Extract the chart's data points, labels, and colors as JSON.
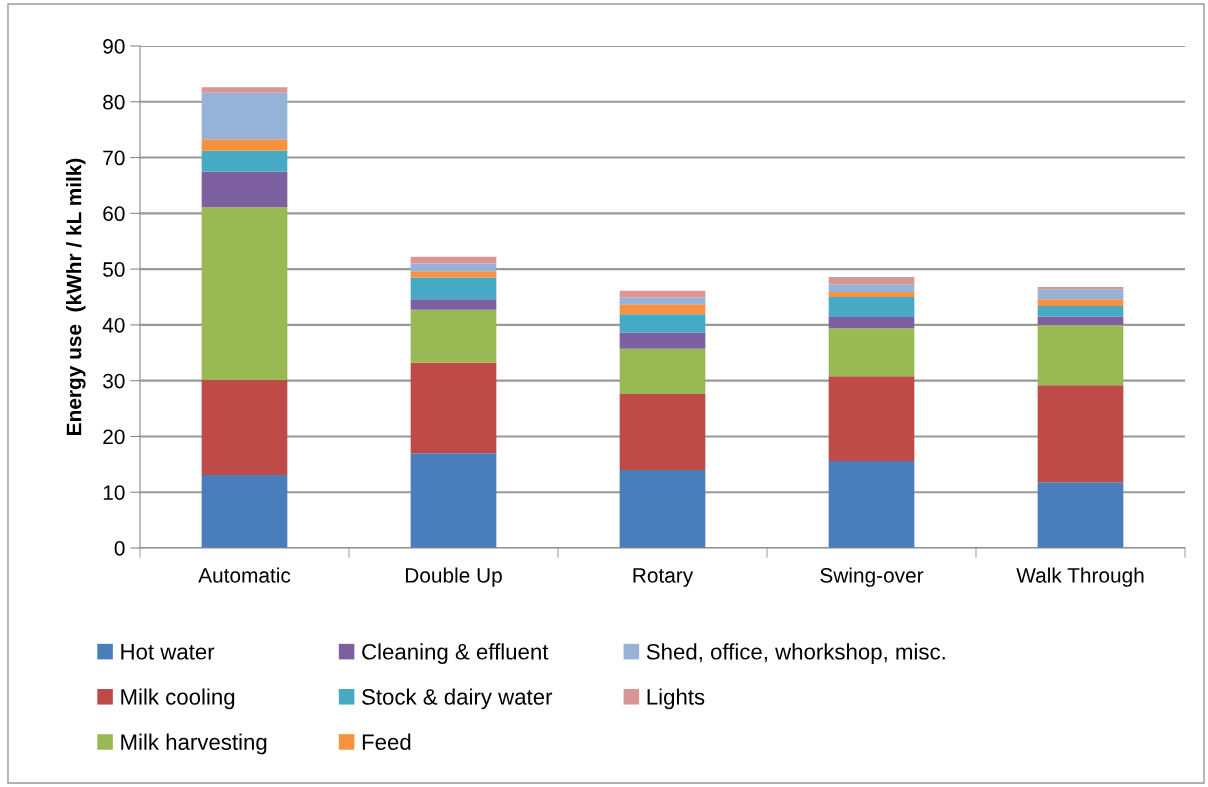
{
  "chart_data": {
    "type": "bar",
    "stacked": true,
    "ylabel": "Energy use  (kWhr / kL milk)",
    "categories": [
      "Automatic",
      "Double Up",
      "Rotary",
      "Swing-over",
      "Walk Through"
    ],
    "ylim": [
      0,
      90
    ],
    "yticks": [
      0,
      10,
      20,
      30,
      40,
      50,
      60,
      70,
      80,
      90
    ],
    "grid": "y",
    "legend": "bottom",
    "series": [
      {
        "name": "Hot water",
        "color": "#4a7ebb",
        "values": [
          13.1,
          17.0,
          14.0,
          15.6,
          11.8
        ]
      },
      {
        "name": "Milk cooling",
        "color": "#be4b48",
        "values": [
          17.0,
          16.2,
          13.6,
          15.2,
          17.4
        ]
      },
      {
        "name": "Milk harvesting",
        "color": "#98b954",
        "values": [
          31.0,
          9.5,
          8.1,
          8.6,
          10.8
        ]
      },
      {
        "name": "Cleaning & effluent",
        "color": "#7d60a0",
        "values": [
          6.4,
          1.9,
          2.9,
          2.0,
          1.5
        ]
      },
      {
        "name": "Stock & dairy water",
        "color": "#46aac5",
        "values": [
          3.7,
          3.9,
          3.3,
          3.6,
          1.9
        ]
      },
      {
        "name": "Feed",
        "color": "#f69240",
        "values": [
          2.1,
          1.1,
          1.8,
          0.9,
          1.2
        ]
      },
      {
        "name": "Shed, office, whorkshop, misc.",
        "color": "#95b3d7",
        "values": [
          8.3,
          1.4,
          1.2,
          1.4,
          1.8
        ]
      },
      {
        "name": "Lights",
        "color": "#d99694",
        "values": [
          1.0,
          1.2,
          1.2,
          1.3,
          0.4
        ]
      }
    ]
  }
}
